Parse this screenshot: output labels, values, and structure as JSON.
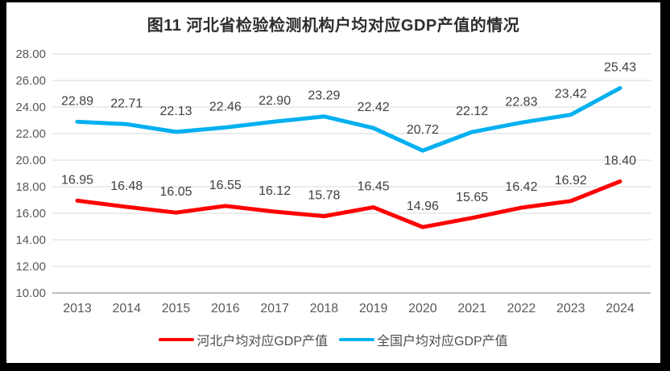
{
  "title": "图11 河北省检验检测机构户均对应GDP产值的情况",
  "legend": [
    {
      "label": "河北户均对应GDP产值",
      "color": "#ff0000"
    },
    {
      "label": "全国户均对应GDP产值",
      "color": "#00b0f0"
    }
  ],
  "colors": {
    "frame_border": "#000000",
    "gridline": "#d9d9d9",
    "axis_line": "#bfbfbf",
    "axis_text": "#595959",
    "data_label_text": "#404040",
    "title_text": "#2e2e2e",
    "series_hebei": "#ff0000",
    "series_national": "#00b0f0"
  },
  "chart_data": {
    "type": "line",
    "title": "图11 河北省检验检测机构户均对应GDP产值的情况",
    "categories": [
      "2013",
      "2014",
      "2015",
      "2016",
      "2017",
      "2018",
      "2019",
      "2020",
      "2021",
      "2022",
      "2023",
      "2024"
    ],
    "series": [
      {
        "name": "河北户均对应GDP产值",
        "color": "#ff0000",
        "values": [
          16.95,
          16.48,
          16.05,
          16.55,
          16.12,
          15.78,
          16.45,
          14.96,
          15.65,
          16.42,
          16.92,
          18.4
        ]
      },
      {
        "name": "全国户均对应GDP产值",
        "color": "#00b0f0",
        "values": [
          22.89,
          22.71,
          22.13,
          22.46,
          22.9,
          23.29,
          22.42,
          20.72,
          22.12,
          22.83,
          23.42,
          25.43
        ]
      }
    ],
    "xlabel": "",
    "ylabel": "",
    "ylim": [
      10,
      28
    ],
    "ytick_step": 2,
    "ytick_format": "2dp",
    "grid": true,
    "data_labels": true,
    "legend_position": "bottom"
  }
}
